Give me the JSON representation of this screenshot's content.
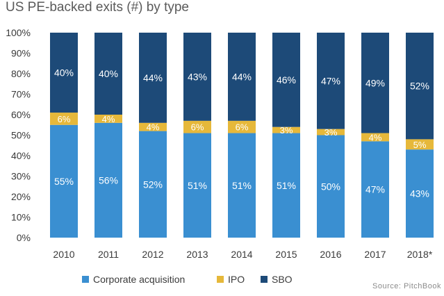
{
  "chart_data": {
    "type": "bar",
    "stacked": true,
    "title": "US PE-backed exits (#) by type",
    "categories": [
      "2010",
      "2011",
      "2012",
      "2013",
      "2014",
      "2015",
      "2016",
      "2017",
      "2018*"
    ],
    "series": [
      {
        "name": "Corporate acquisition",
        "values": [
          55,
          56,
          52,
          51,
          51,
          51,
          50,
          47,
          43
        ],
        "color": "#3a8fd1"
      },
      {
        "name": "IPO",
        "values": [
          6,
          4,
          4,
          6,
          6,
          3,
          3,
          4,
          5
        ],
        "color": "#e6b83a"
      },
      {
        "name": "SBO",
        "values": [
          40,
          40,
          44,
          43,
          44,
          46,
          47,
          49,
          52
        ],
        "color": "#1d4a78"
      }
    ],
    "ylim": [
      0,
      100
    ],
    "yticks": [
      "0%",
      "10%",
      "20%",
      "30%",
      "40%",
      "50%",
      "60%",
      "70%",
      "80%",
      "90%",
      "100%"
    ],
    "legend_position": "bottom",
    "source": "Source: PitchBook"
  }
}
